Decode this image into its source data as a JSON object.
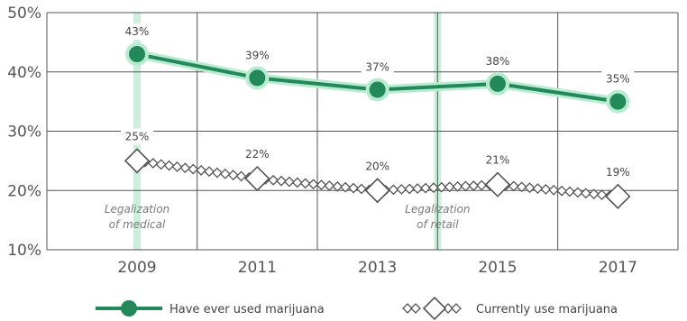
{
  "chart_data": {
    "type": "line",
    "x": [
      2009,
      2011,
      2013,
      2015,
      2017
    ],
    "x_tick_labels": [
      "2009",
      "2011",
      "2013",
      "2015",
      "2017"
    ],
    "y_tick_labels": [
      "50%",
      "40%",
      "30%",
      "20%",
      "10%"
    ],
    "y_ticks": [
      50,
      40,
      30,
      20,
      10
    ],
    "ylim": [
      10,
      50
    ],
    "xlim": [
      2007.5,
      2018
    ],
    "grid": true,
    "series": [
      {
        "name": "Have ever used marijuana",
        "values": [
          43,
          39,
          37,
          38,
          35
        ],
        "labels": [
          "43%",
          "39%",
          "37%",
          "38%",
          "35%"
        ],
        "color": "#23895a"
      },
      {
        "name": "Currently use marijuana",
        "values": [
          25,
          22,
          20,
          21,
          19
        ],
        "labels": [
          "25%",
          "22%",
          "20%",
          "21%",
          "19%"
        ],
        "color": "#555555"
      }
    ],
    "annotations": [
      {
        "x": 2009,
        "lines": [
          "Legalization",
          "of medical"
        ]
      },
      {
        "x": 2014,
        "lines": [
          "Legalization",
          "of retail"
        ]
      }
    ],
    "legend_position": "bottom",
    "colors": {
      "grid": "#555555",
      "highlight_band": "#cdeedd",
      "series_halo": "#b8ecd0"
    }
  }
}
